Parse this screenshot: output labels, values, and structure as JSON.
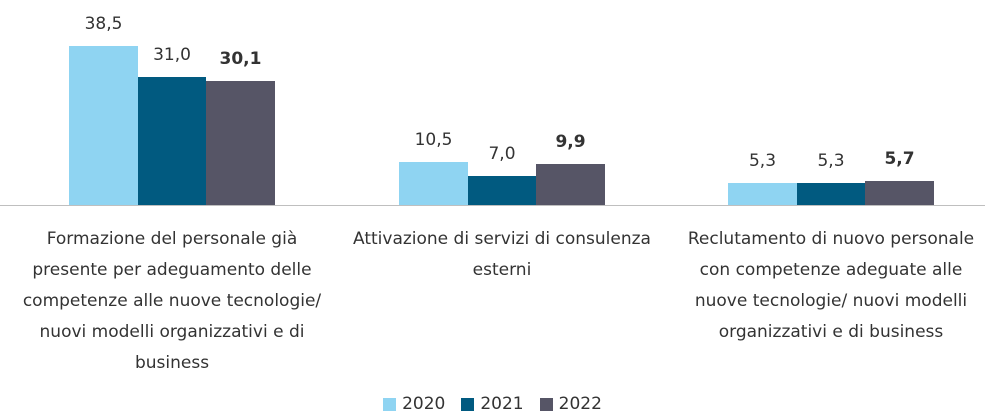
{
  "chart_data": {
    "type": "bar",
    "categories": [
      "Formazione del personale già presente per adeguamento delle competenze alle nuove tecnologie/ nuovi modelli organizzativi e di business",
      "Attivazione di servizi di consulenza esterni",
      "Reclutamento di nuovo personale con competenze adeguate alle nuove tecnologie/ nuovi modelli organizzativi e di business"
    ],
    "series": [
      {
        "name": "2020",
        "color": "#8fd4f2",
        "values": [
          38.5,
          10.5,
          5.3
        ],
        "value_labels": [
          "38,5",
          "10,5",
          "5,3"
        ]
      },
      {
        "name": "2021",
        "color": "#015a80",
        "values": [
          31.0,
          7.0,
          5.3
        ],
        "value_labels": [
          "31,0",
          "7,0",
          "5,3"
        ]
      },
      {
        "name": "2022",
        "color": "#565566",
        "values": [
          30.1,
          9.9,
          5.7
        ],
        "value_labels": [
          "30,1",
          "9,9",
          "5,7"
        ]
      }
    ]
  }
}
